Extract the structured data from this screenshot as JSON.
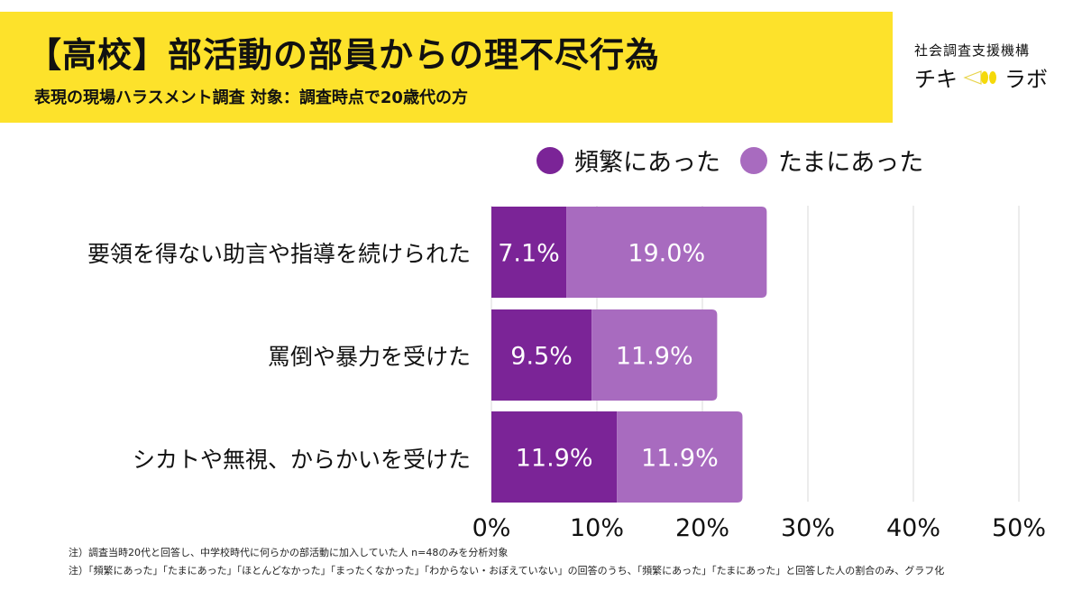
{
  "header": {
    "title": "【高校】部活動の部員からの理不尽行為",
    "subtitle": "表現の現場ハラスメント調査 対象：調査時点で20歳代の方"
  },
  "logo": {
    "org": "社会調査支援機構",
    "name_left": "チキ",
    "name_right": "ラボ",
    "mark_icon": "megaphone-light-icon"
  },
  "colors": {
    "banner": "#fde22b",
    "frequent": "#7b2497",
    "occasional": "#a86bbf",
    "grid": "#d9d9d9"
  },
  "chart_data": {
    "type": "bar",
    "orientation": "horizontal",
    "stacked": true,
    "title": "【高校】部活動の部員からの理不尽行為",
    "categories": [
      "要領を得ない助言や指導を続けられた",
      "罵倒や暴力を受けた",
      "シカトや無視、からかいを受けた"
    ],
    "series": [
      {
        "name": "頻繁にあった",
        "color": "#7b2497",
        "values": [
          7.1,
          9.5,
          11.9
        ],
        "labels": [
          "7.1%",
          "9.5%",
          "11.9%"
        ]
      },
      {
        "name": "たまにあった",
        "color": "#a86bbf",
        "values": [
          19.0,
          11.9,
          11.9
        ],
        "labels": [
          "19.0%",
          "11.9%",
          "11.9%"
        ]
      }
    ],
    "xlabel": "",
    "ylabel": "",
    "xlim": [
      0,
      50
    ],
    "xticks": [
      0,
      10,
      20,
      30,
      40,
      50
    ],
    "xtick_labels": [
      "0%",
      "10%",
      "20%",
      "30%",
      "40%",
      "50%"
    ],
    "grid": true,
    "legend_position": "top-right"
  },
  "notes": [
    "注）調査当時20代と回答し、中学校時代に何らかの部活動に加入していた人 n=48のみを分析対象",
    "注）「頻繁にあった」「たまにあった」「ほとんどなかった」「まったくなかった」「わからない・おぼえていない」の回答のうち、「頻繁にあった」「たまにあった」と回答した人の割合のみ、グラフ化"
  ]
}
